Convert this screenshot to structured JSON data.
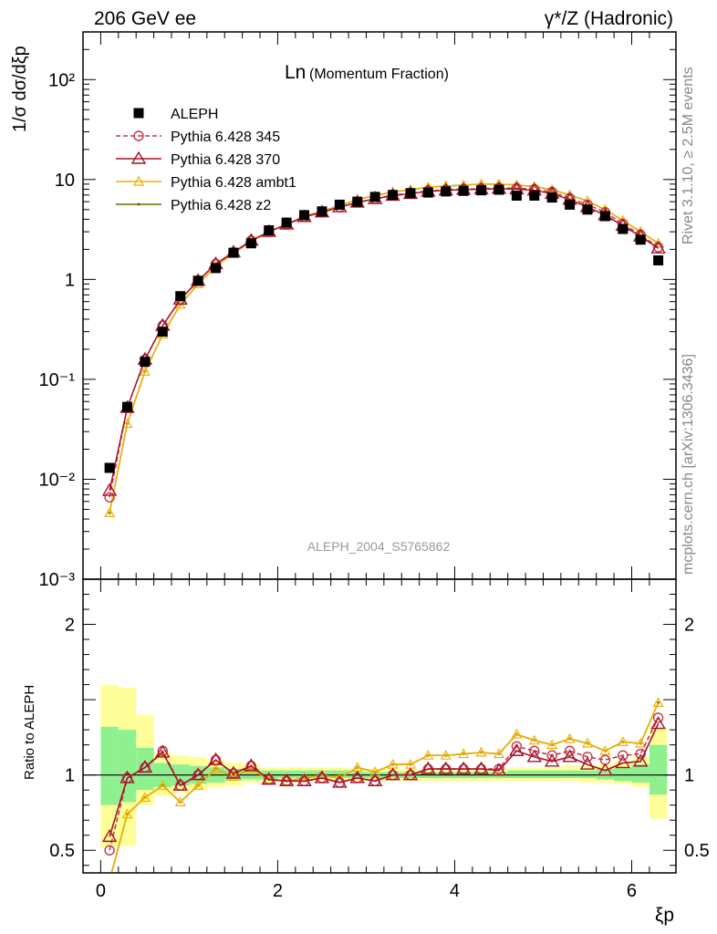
{
  "header": {
    "left": "206 GeV ee",
    "right": "γ*/Z (Hadronic)"
  },
  "side_labels": {
    "top": "Rivet 3.1.10, ≥ 2.5M events",
    "bottom": "mcplots.cern.ch [arXiv:1306.3436]"
  },
  "chart_data": [
    {
      "type": "scatter",
      "title": "Ln(Momentum Fraction)",
      "title_main": "Ln",
      "title_paren": "(Momentum Fraction)",
      "watermark": "ALEPH_2004_S5765862",
      "ylabel": "1/σ dσ/dξp",
      "yscale": "log",
      "ylim": [
        0.001,
        300
      ],
      "xlim": [
        -0.2,
        6.5
      ],
      "yticks": [
        {
          "value": 100,
          "label": "10²"
        },
        {
          "value": 10,
          "label": "10"
        },
        {
          "value": 1,
          "label": "1"
        },
        {
          "value": 0.1,
          "label": "10⁻¹"
        },
        {
          "value": 0.01,
          "label": "10⁻²"
        },
        {
          "value": 0.001,
          "label": "10⁻³"
        }
      ],
      "legend_position": "top-left",
      "x": [
        0.1,
        0.3,
        0.5,
        0.7,
        0.9,
        1.1,
        1.3,
        1.5,
        1.7,
        1.9,
        2.1,
        2.3,
        2.5,
        2.7,
        2.9,
        3.1,
        3.3,
        3.5,
        3.7,
        3.9,
        4.1,
        4.3,
        4.5,
        4.7,
        4.9,
        5.1,
        5.3,
        5.5,
        5.7,
        5.9,
        6.1,
        6.3
      ],
      "series": [
        {
          "name": "ALEPH",
          "color": "#000000",
          "marker": "square",
          "line": "none",
          "values": [
            0.013,
            0.053,
            0.15,
            0.3,
            0.68,
            0.97,
            1.3,
            1.85,
            2.3,
            3.1,
            3.7,
            4.4,
            4.8,
            5.6,
            6.0,
            6.7,
            7.0,
            7.3,
            7.4,
            7.6,
            7.7,
            7.8,
            7.9,
            6.9,
            6.9,
            6.6,
            5.6,
            5.0,
            4.3,
            3.2,
            2.5,
            1.55
          ]
        },
        {
          "name": "Pythia 6.428 345",
          "color": "#c0384b",
          "marker": "circle",
          "line": "dashed",
          "values": [
            0.0066,
            0.052,
            0.158,
            0.345,
            0.63,
            0.97,
            1.43,
            1.87,
            2.45,
            3.0,
            3.55,
            4.22,
            4.7,
            5.3,
            5.9,
            6.4,
            7.0,
            7.3,
            7.7,
            7.9,
            8.0,
            8.1,
            8.2,
            8.2,
            8.0,
            7.5,
            6.5,
            5.6,
            4.7,
            3.6,
            2.8,
            2.1
          ]
        },
        {
          "name": "Pythia 6.428 370",
          "color": "#a8102a",
          "marker": "triangle",
          "line": "solid",
          "values": [
            0.0077,
            0.052,
            0.158,
            0.345,
            0.63,
            0.97,
            1.43,
            1.87,
            2.45,
            3.0,
            3.55,
            4.22,
            4.7,
            5.3,
            5.9,
            6.4,
            6.9,
            7.2,
            7.6,
            7.8,
            7.9,
            8.0,
            8.1,
            8.0,
            7.8,
            7.2,
            6.3,
            5.3,
            4.4,
            3.45,
            2.7,
            2.05
          ]
        },
        {
          "name": "Pythia 6.428 ambt1",
          "color": "#f0b000",
          "marker": "triangle-open",
          "line": "solid",
          "values": [
            0.0046,
            0.036,
            0.12,
            0.28,
            0.56,
            0.9,
            1.35,
            1.83,
            2.4,
            3.0,
            3.55,
            4.3,
            4.8,
            5.5,
            6.3,
            6.9,
            7.5,
            7.9,
            8.4,
            8.6,
            8.8,
            9.0,
            9.0,
            8.8,
            8.5,
            7.9,
            7.0,
            6.1,
            5.0,
            3.9,
            3.0,
            2.3
          ]
        },
        {
          "name": "Pythia 6.428 z2",
          "color": "#6b6b00",
          "marker": "dot",
          "line": "solid",
          "values": [
            0.0046,
            0.036,
            0.12,
            0.28,
            0.56,
            0.9,
            1.35,
            1.83,
            2.4,
            3.0,
            3.55,
            4.3,
            4.8,
            5.5,
            6.3,
            6.9,
            7.5,
            7.9,
            8.4,
            8.6,
            8.8,
            9.0,
            9.0,
            8.8,
            8.5,
            7.9,
            7.0,
            6.1,
            5.0,
            3.9,
            3.0,
            2.3
          ]
        }
      ]
    },
    {
      "type": "line",
      "ylabel": "Ratio to ALEPH",
      "xlabel": "ξp",
      "ylim": [
        0.35,
        2.3
      ],
      "xlim": [
        -0.2,
        6.5
      ],
      "yticks": [
        {
          "value": 2,
          "label": "2"
        },
        {
          "value": 1,
          "label": "1"
        },
        {
          "value": 0.5,
          "label": "0.5"
        }
      ],
      "xticks": [
        {
          "value": 0,
          "label": "0"
        },
        {
          "value": 2,
          "label": "2"
        },
        {
          "value": 4,
          "label": "4"
        },
        {
          "value": 6,
          "label": "6"
        }
      ],
      "reference_line": 1,
      "uncertainty_bands": {
        "x_edges": [
          0.0,
          0.2,
          0.4,
          0.6,
          0.8,
          1.0,
          1.2,
          1.4,
          1.6,
          1.8,
          2.0,
          2.2,
          2.4,
          2.6,
          2.8,
          3.0,
          3.2,
          3.4,
          3.6,
          3.8,
          4.0,
          4.2,
          4.4,
          4.6,
          4.8,
          5.0,
          5.2,
          5.4,
          5.6,
          5.8,
          6.0,
          6.2,
          6.4
        ],
        "total_low": [
          0.52,
          0.53,
          0.8,
          0.86,
          0.88,
          0.9,
          0.92,
          0.93,
          0.95,
          0.95,
          0.96,
          0.96,
          0.96,
          0.96,
          0.96,
          0.96,
          0.96,
          0.96,
          0.96,
          0.96,
          0.96,
          0.96,
          0.96,
          0.96,
          0.96,
          0.96,
          0.96,
          0.95,
          0.95,
          0.94,
          0.92,
          0.71
        ],
        "total_high": [
          1.6,
          1.58,
          1.4,
          1.15,
          1.13,
          1.12,
          1.1,
          1.08,
          1.07,
          1.05,
          1.05,
          1.05,
          1.05,
          1.05,
          1.04,
          1.04,
          1.04,
          1.04,
          1.04,
          1.04,
          1.04,
          1.04,
          1.04,
          1.05,
          1.05,
          1.05,
          1.06,
          1.06,
          1.07,
          1.09,
          1.12,
          1.32
        ],
        "stat_low": [
          0.8,
          0.82,
          0.9,
          0.92,
          0.93,
          0.94,
          0.95,
          0.96,
          0.97,
          0.97,
          0.98,
          0.98,
          0.98,
          0.98,
          0.98,
          0.98,
          0.98,
          0.98,
          0.98,
          0.98,
          0.98,
          0.98,
          0.98,
          0.98,
          0.98,
          0.98,
          0.98,
          0.98,
          0.97,
          0.96,
          0.95,
          0.87
        ],
        "stat_high": [
          1.32,
          1.3,
          1.18,
          1.08,
          1.07,
          1.06,
          1.05,
          1.04,
          1.04,
          1.03,
          1.03,
          1.03,
          1.03,
          1.03,
          1.02,
          1.02,
          1.02,
          1.02,
          1.02,
          1.02,
          1.02,
          1.02,
          1.02,
          1.03,
          1.03,
          1.03,
          1.03,
          1.03,
          1.04,
          1.05,
          1.07,
          1.2
        ]
      },
      "series": [
        {
          "name": "Pythia 6.428 345",
          "values": [
            0.5,
            0.98,
            1.05,
            1.16,
            0.93,
            1.0,
            1.1,
            1.01,
            1.06,
            0.97,
            0.96,
            0.96,
            0.98,
            0.95,
            0.98,
            0.96,
            1.0,
            1.0,
            1.04,
            1.04,
            1.04,
            1.04,
            1.04,
            1.19,
            1.16,
            1.13,
            1.16,
            1.12,
            1.1,
            1.13,
            1.14,
            1.38
          ]
        },
        {
          "name": "Pythia 6.428 370",
          "values": [
            0.59,
            0.98,
            1.05,
            1.15,
            0.93,
            1.0,
            1.1,
            1.01,
            1.06,
            0.97,
            0.96,
            0.96,
            0.98,
            0.95,
            0.98,
            0.96,
            1.0,
            1.0,
            1.04,
            1.04,
            1.04,
            1.04,
            1.03,
            1.16,
            1.12,
            1.09,
            1.12,
            1.07,
            1.03,
            1.08,
            1.09,
            1.34
          ]
        },
        {
          "name": "Pythia 6.428 ambt1",
          "values": [
            0.3,
            0.74,
            0.85,
            0.93,
            0.82,
            0.93,
            1.04,
            0.99,
            1.04,
            0.97,
            0.96,
            0.98,
            1.0,
            0.98,
            1.05,
            1.02,
            1.07,
            1.07,
            1.13,
            1.13,
            1.14,
            1.15,
            1.14,
            1.27,
            1.23,
            1.2,
            1.24,
            1.21,
            1.16,
            1.22,
            1.21,
            1.48
          ]
        },
        {
          "name": "Pythia 6.428 z2",
          "values": [
            0.3,
            0.74,
            0.85,
            0.93,
            0.82,
            0.93,
            1.04,
            0.99,
            1.04,
            0.97,
            0.96,
            0.98,
            1.0,
            0.98,
            1.05,
            1.02,
            1.07,
            1.07,
            1.13,
            1.13,
            1.14,
            1.15,
            1.14,
            1.27,
            1.23,
            1.2,
            1.24,
            1.21,
            1.16,
            1.22,
            1.21,
            1.48
          ]
        }
      ]
    }
  ]
}
